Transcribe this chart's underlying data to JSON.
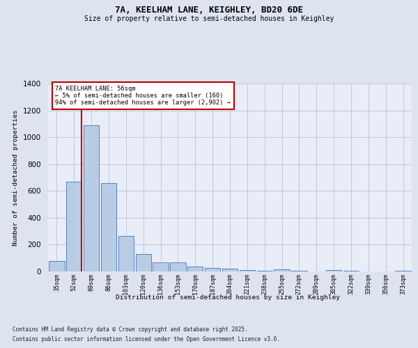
{
  "title1": "7A, KEELHAM LANE, KEIGHLEY, BD20 6DE",
  "title2": "Size of property relative to semi-detached houses in Keighley",
  "xlabel": "Distribution of semi-detached houses by size in Keighley",
  "ylabel": "Number of semi-detached properties",
  "categories": [
    "35sqm",
    "52sqm",
    "69sqm",
    "86sqm",
    "103sqm",
    "120sqm",
    "136sqm",
    "153sqm",
    "170sqm",
    "187sqm",
    "204sqm",
    "221sqm",
    "238sqm",
    "255sqm",
    "272sqm",
    "289sqm",
    "305sqm",
    "322sqm",
    "339sqm",
    "356sqm",
    "373sqm"
  ],
  "values": [
    80,
    670,
    1090,
    660,
    265,
    130,
    70,
    70,
    35,
    25,
    20,
    10,
    5,
    15,
    5,
    0,
    10,
    5,
    0,
    0,
    5
  ],
  "bar_color": "#b8cce4",
  "bar_edge_color": "#4472c4",
  "highlight_bar_index": 1,
  "highlight_color": "#c00000",
  "annotation_title": "7A KEELHAM LANE: 56sqm",
  "annotation_line1": "← 5% of semi-detached houses are smaller (160)",
  "annotation_line2": "94% of semi-detached houses are larger (2,902) →",
  "annotation_box_color": "#c00000",
  "ylim": [
    0,
    1400
  ],
  "yticks": [
    0,
    200,
    400,
    600,
    800,
    1000,
    1200,
    1400
  ],
  "footer1": "Contains HM Land Registry data © Crown copyright and database right 2025.",
  "footer2": "Contains public sector information licensed under the Open Government Licence v3.0.",
  "bg_color": "#dde4f0",
  "plot_bg_color": "#e8edf8"
}
